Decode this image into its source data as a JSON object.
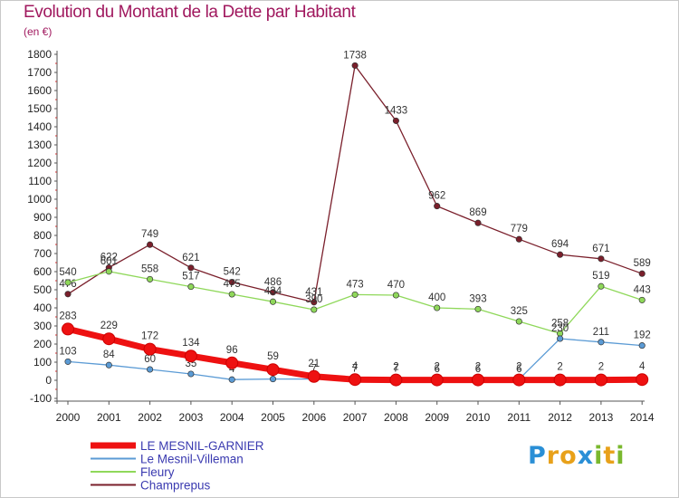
{
  "header": {
    "title": "Evolution du Montant de la Dette par Habitant",
    "subtitle": "(en €)"
  },
  "logo": {
    "letters": [
      "P",
      "r",
      "o",
      "x",
      "i",
      "t",
      "i"
    ],
    "colors": [
      "#2a8fd6",
      "#e8a11a",
      "#e8a11a",
      "#2a8fd6",
      "#7ab82e",
      "#e8a11a",
      "#7ab82e"
    ]
  },
  "chart_data": {
    "type": "line",
    "title": "Evolution du Montant de la Dette par Habitant",
    "subtitle": "(en €)",
    "xlabel": "",
    "ylabel": "",
    "x": [
      "2000",
      "2001",
      "2002",
      "2003",
      "2004",
      "2005",
      "2006",
      "2007",
      "2008",
      "2009",
      "2010",
      "2011",
      "2012",
      "2013",
      "2014"
    ],
    "ylim": [
      -100,
      1800
    ],
    "yticks": [
      -100,
      0,
      100,
      200,
      300,
      400,
      500,
      600,
      700,
      800,
      900,
      1000,
      1100,
      1200,
      1300,
      1400,
      1500,
      1600,
      1700,
      1800
    ],
    "grid": false,
    "legend_position": "bottom-left",
    "series": [
      {
        "name": "Champrepus",
        "color": "#7a1f2b",
        "values": [
          476,
          622,
          749,
          621,
          542,
          486,
          431,
          1738,
          1433,
          962,
          869,
          779,
          694,
          671,
          589
        ]
      },
      {
        "name": "Fleury",
        "color": "#8fd85a",
        "values": [
          540,
          601,
          558,
          517,
          475,
          434,
          390,
          473,
          470,
          400,
          393,
          325,
          258,
          519,
          443
        ]
      },
      {
        "name": "Le Mesnil-Villeman",
        "color": "#5b9bd5",
        "values": [
          103,
          84,
          60,
          35,
          4,
          7,
          7,
          7,
          7,
          6,
          6,
          6,
          230,
          211,
          192
        ]
      },
      {
        "name": "LE MESNIL-GARNIER",
        "color": "#ee1111",
        "values": [
          283,
          229,
          172,
          134,
          96,
          59,
          21,
          4,
          2,
          2,
          2,
          2,
          2,
          2,
          4
        ]
      }
    ]
  }
}
